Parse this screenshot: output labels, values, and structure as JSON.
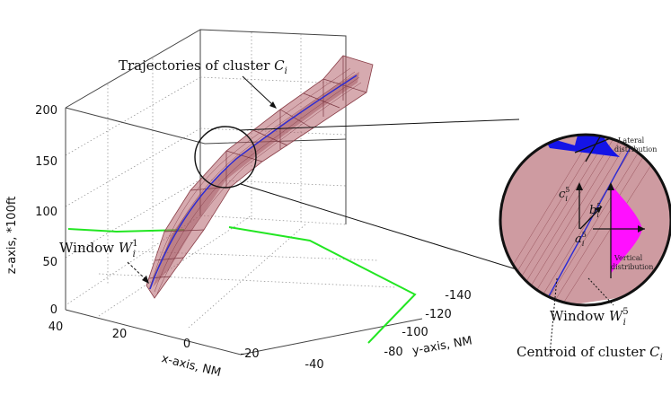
{
  "axes": {
    "z_label": "z-axis, *100ft",
    "x_label": "x-axis, NM",
    "y_label": "y-axis, NM",
    "z_ticks": [
      "200",
      "150",
      "100",
      "50",
      "0"
    ],
    "x_ticks": [
      "40",
      "20",
      "0",
      "-20",
      "-40"
    ],
    "y_ticks": [
      "-140",
      "-120",
      "-100",
      "-80"
    ]
  },
  "annotations": {
    "trajectories": "Trajectories of cluster ",
    "trajectories_sym": "C",
    "trajectories_sub": "i",
    "window_left": "Window ",
    "window_left_sym": "W",
    "window_left_sup": "1",
    "window_left_sub": "i",
    "window_right": "Window ",
    "window_right_sym": "W",
    "window_right_sup": "5",
    "window_right_sub": "i",
    "centroid": "Centroid of cluster ",
    "centroid_sym": "C",
    "centroid_sub": "i",
    "lateral_1": "Lateral",
    "lateral_2": "distribution",
    "vertical_1": "Vertical",
    "vertical_2": "distribution",
    "c_label": "c",
    "c_sup": "5",
    "c_sub": "i",
    "b_label": "b",
    "b_sup": "5",
    "b_sub": "i",
    "a_label": "a",
    "a_sup": "5",
    "a_sub": "i"
  },
  "colors": {
    "tube_fill": "#b5646e",
    "centroid": "#2a2ad6",
    "green": "#22e622",
    "lateral": "#1414e6",
    "vertical": "#ff10ff"
  }
}
